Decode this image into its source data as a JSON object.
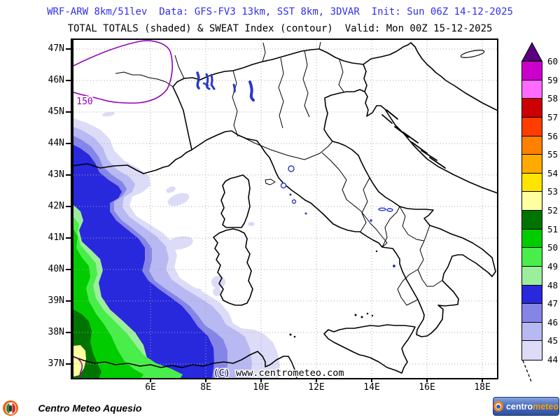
{
  "header": {
    "model_line": "WRF-ARW 8km/51lev  Data: GFS-FV3 13km, SST 8km, 3DVAR  Init: Sun 06Z 14-12-2025",
    "model_line_color": "#2f2ff0",
    "product_line": "TOTAL TOTALS (shaded) & SWEAT Index (contour)  Valid: Mon 00Z 15-12-2025"
  },
  "map": {
    "extent": {
      "lon_min": 3.215,
      "lon_max": 18.53,
      "lat_min": 36.556,
      "lat_max": 47.29
    },
    "lon_ticks": [
      {
        "value": 6,
        "label": "6E"
      },
      {
        "value": 8,
        "label": "8E"
      },
      {
        "value": 10,
        "label": "10E"
      },
      {
        "value": 12,
        "label": "12E"
      },
      {
        "value": 14,
        "label": "14E"
      },
      {
        "value": 16,
        "label": "16E"
      },
      {
        "value": 18,
        "label": "18E"
      }
    ],
    "lat_ticks": [
      {
        "value": 47,
        "label": "47N"
      },
      {
        "value": 46,
        "label": "46N"
      },
      {
        "value": 45,
        "label": "45N"
      },
      {
        "value": 44,
        "label": "44N"
      },
      {
        "value": 43,
        "label": "43N"
      },
      {
        "value": 42,
        "label": "42N"
      },
      {
        "value": 41,
        "label": "41N"
      },
      {
        "value": 40,
        "label": "40N"
      },
      {
        "value": 39,
        "label": "39N"
      },
      {
        "value": 38,
        "label": "38N"
      },
      {
        "value": 37,
        "label": "37N"
      }
    ],
    "copyright": "(C) www.centrometeo.com",
    "contours": {
      "variable": "SWEAT Index",
      "color": "#9400b8",
      "labels": [
        "150"
      ]
    }
  },
  "colorbar": {
    "variable": "TOTAL TOTALS",
    "levels": [
      44,
      45,
      46,
      47,
      48,
      49,
      50,
      51,
      52,
      53,
      54,
      55,
      56,
      57,
      58,
      59,
      60
    ],
    "segment_colors": [
      "#dcdcf8",
      "#b8b8f2",
      "#8585e8",
      "#2828dd",
      "#9cee9c",
      "#4aee4a",
      "#00cc00",
      "#007400",
      "#ffffa0",
      "#ffe400",
      "#ffaa00",
      "#ff8000",
      "#ff3c00",
      "#cc0000",
      "#ff6aff",
      "#cc00cc"
    ],
    "overflow_color": "#5a0080"
  },
  "branding": {
    "left": {
      "word1": {
        "text": "Centro ",
        "color": "#ed6a1e"
      },
      "word2": {
        "text": "Meteo ",
        "color": "#d43a2a"
      },
      "word3": {
        "text": "Aquesio",
        "color": "#f0941e"
      }
    },
    "right": {
      "word1": "centro",
      "word2": "meteo"
    }
  }
}
